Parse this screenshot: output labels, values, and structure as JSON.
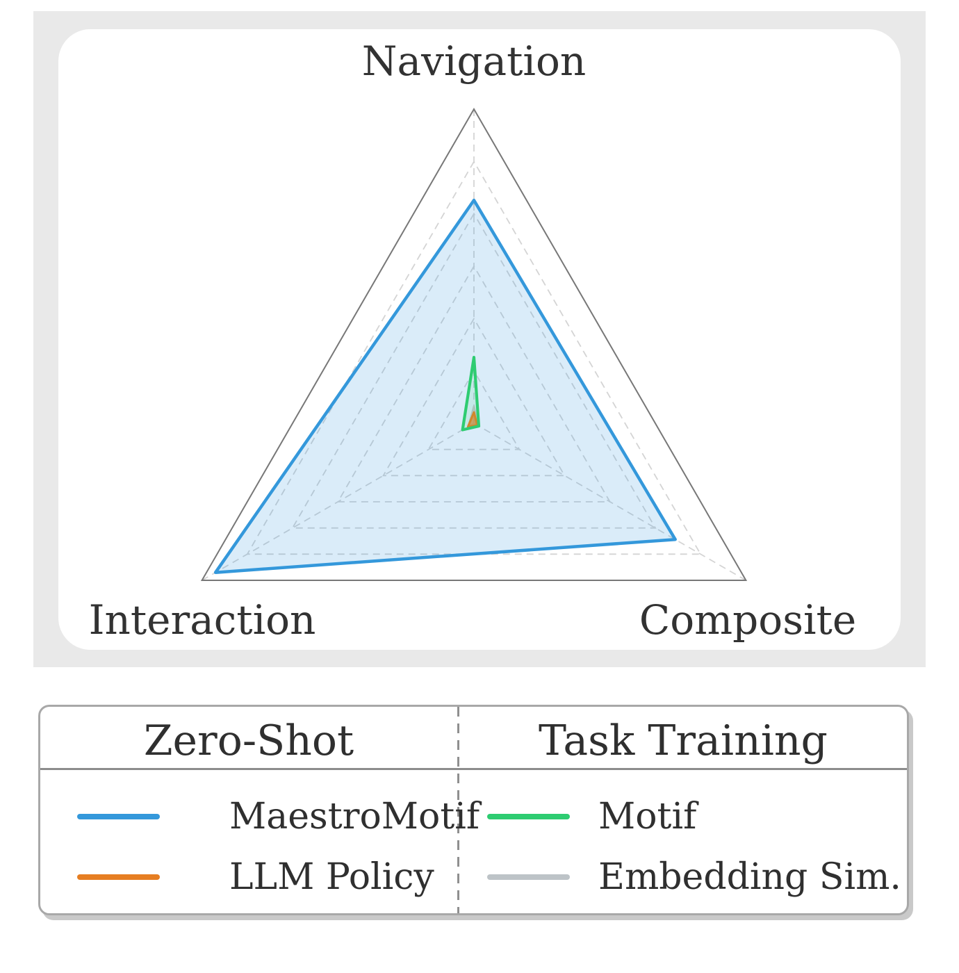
{
  "figure": {
    "panel_bg": "#e9e9e9",
    "card_bg": "#ffffff",
    "grid_color": "#d4d4d4",
    "outer_triangle_color": "#777777",
    "label_color": "#323232"
  },
  "chart_data": {
    "type": "radar",
    "categories": [
      "Navigation",
      "Interaction",
      "Composite"
    ],
    "axis_range": [
      0,
      1
    ],
    "gridlines": [
      0.167,
      0.333,
      0.5,
      0.667,
      0.833,
      1.0
    ],
    "grid_style": "dashed",
    "legend_position": "bottom",
    "series": [
      {
        "name": "MaestroMotif",
        "group": "Zero-Shot",
        "color": "#3498db",
        "values": [
          0.71,
          0.95,
          0.74
        ]
      },
      {
        "name": "LLM Policy",
        "group": "Zero-Shot",
        "color": "#e67e22",
        "values": [
          0.035,
          0.022,
          0.012
        ]
      },
      {
        "name": "Motif",
        "group": "Task Training",
        "color": "#2ecc71",
        "values": [
          0.21,
          0.042,
          0.018
        ]
      },
      {
        "name": "Embedding Sim.",
        "group": "Task Training",
        "color": "#bdc3c7",
        "values": [
          0.053,
          0.02,
          0.015
        ]
      }
    ]
  },
  "legend": {
    "groups": [
      {
        "title": "Zero-Shot",
        "items": [
          {
            "label": "MaestroMotif",
            "color": "#3498db"
          },
          {
            "label": "LLM Policy",
            "color": "#e67e22"
          }
        ]
      },
      {
        "title": "Task Training",
        "items": [
          {
            "label": "Motif",
            "color": "#2ecc71"
          },
          {
            "label": "Embedding Sim.",
            "color": "#bdc3c7"
          }
        ]
      }
    ]
  }
}
